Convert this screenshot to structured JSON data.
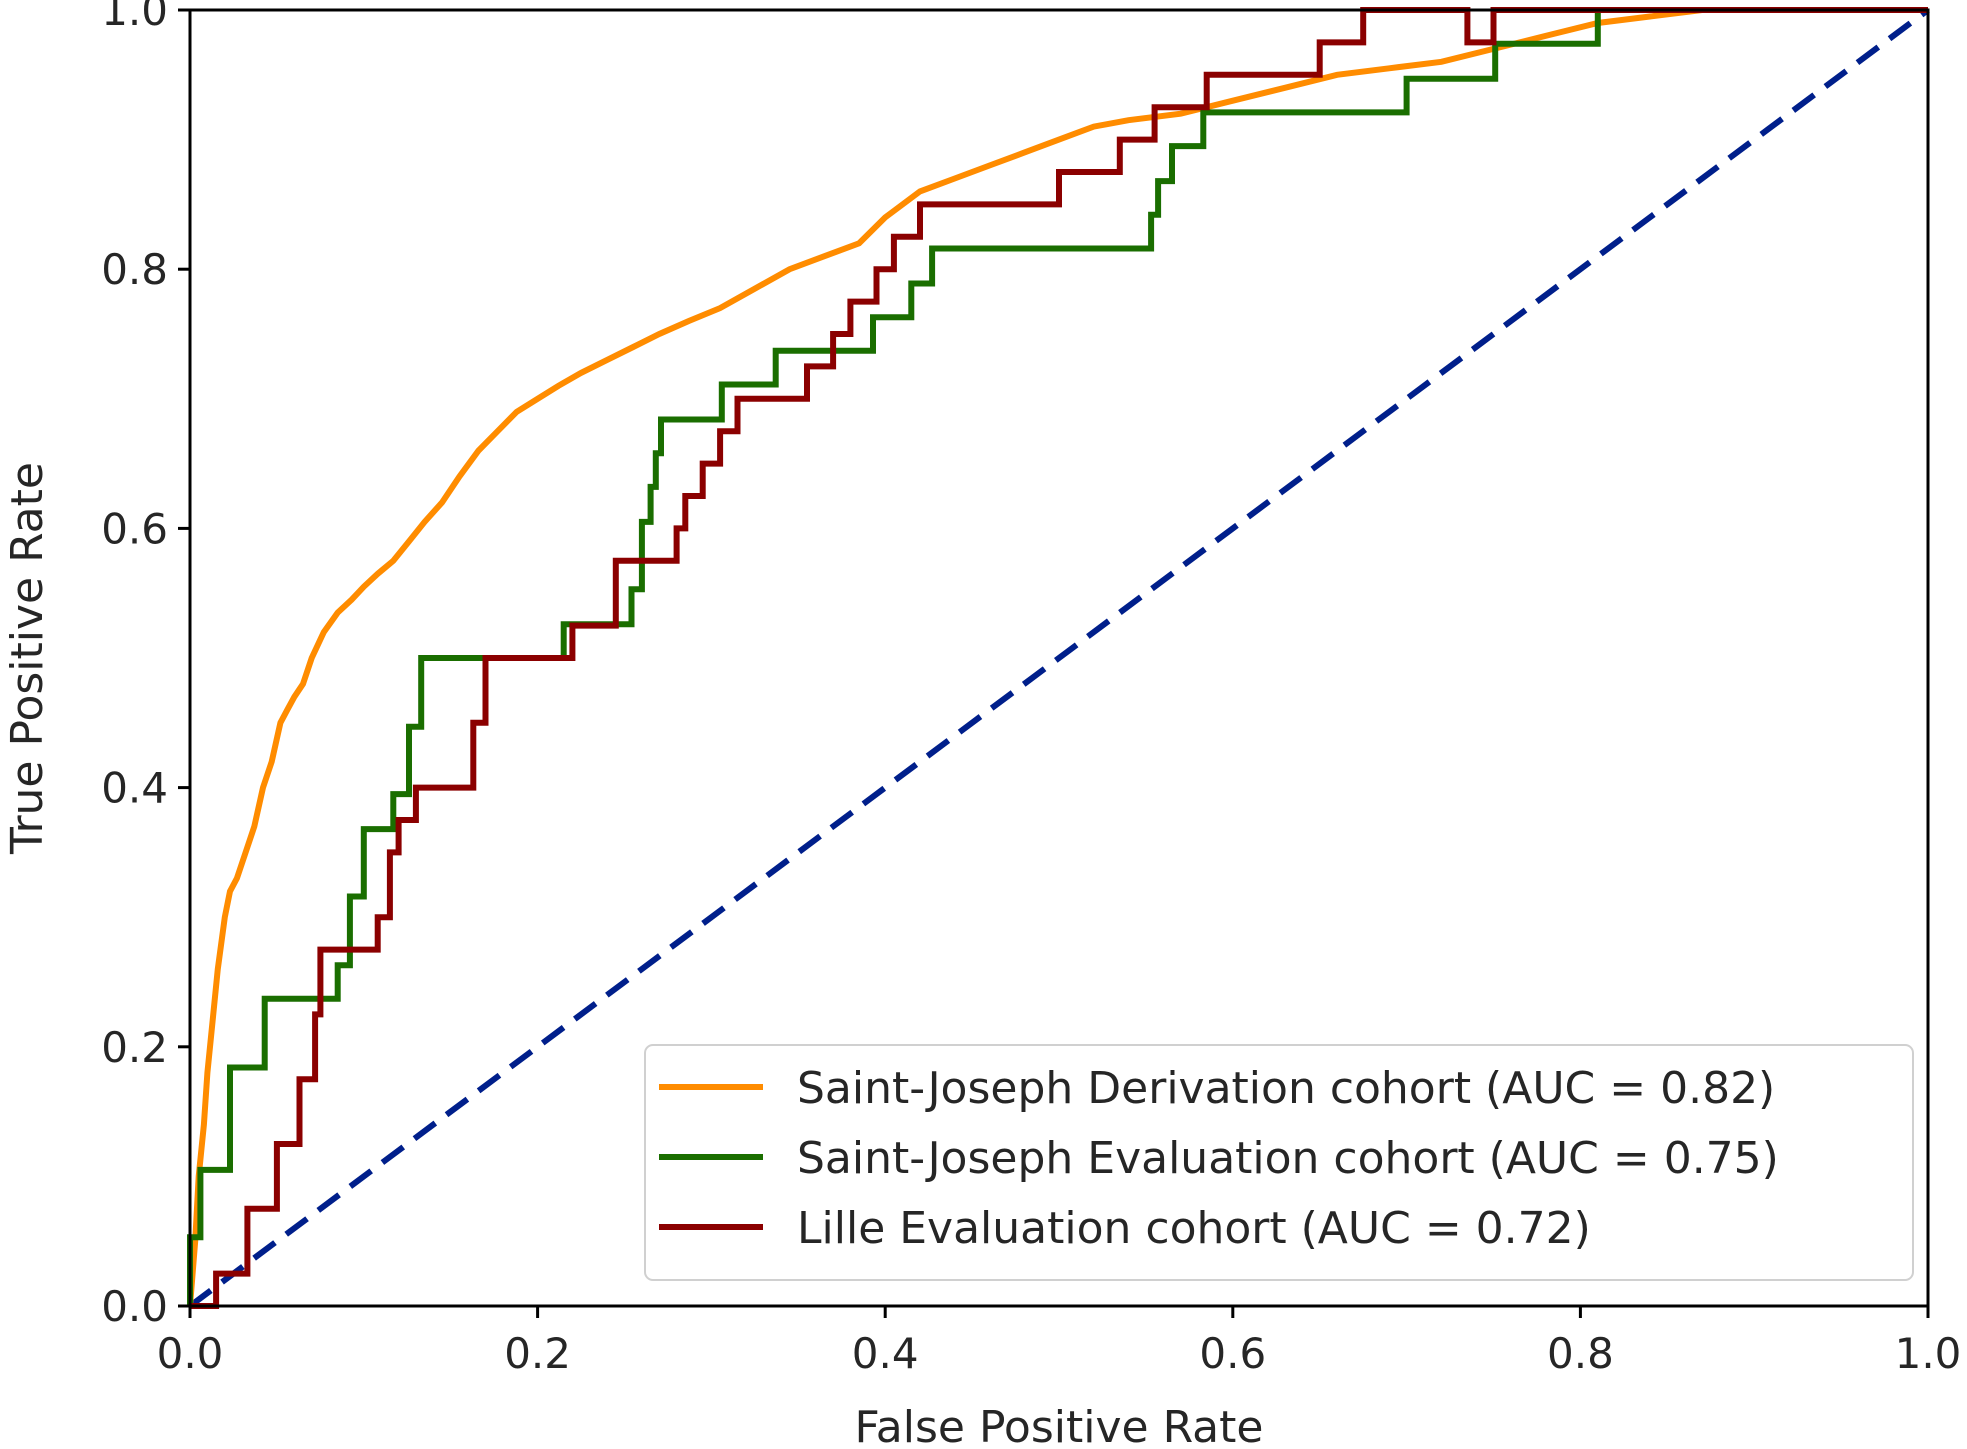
{
  "chart_data": {
    "type": "line",
    "title": "",
    "xlabel": "False Positive Rate",
    "ylabel": "True Positive Rate",
    "xlim": [
      0.0,
      1.0
    ],
    "ylim": [
      0.0,
      1.0
    ],
    "xticks": [
      "0.0",
      "0.2",
      "0.4",
      "0.6",
      "0.8",
      "1.0"
    ],
    "yticks": [
      "0.0",
      "0.2",
      "0.4",
      "0.6",
      "0.8",
      "1.0"
    ],
    "grid": false,
    "legend_position": "lower-right",
    "series": [
      {
        "name": "Saint-Joseph Derivation cohort (AUC = 0.82)",
        "color": "#ff8c00",
        "x": [
          0.0,
          0.003,
          0.005,
          0.008,
          0.01,
          0.013,
          0.016,
          0.02,
          0.023,
          0.027,
          0.032,
          0.037,
          0.042,
          0.047,
          0.052,
          0.056,
          0.06,
          0.065,
          0.07,
          0.077,
          0.085,
          0.093,
          0.1,
          0.108,
          0.117,
          0.126,
          0.135,
          0.145,
          0.155,
          0.166,
          0.177,
          0.188,
          0.2,
          0.212,
          0.225,
          0.24,
          0.255,
          0.27,
          0.287,
          0.305,
          0.325,
          0.345,
          0.365,
          0.385,
          0.4,
          0.42,
          0.44,
          0.46,
          0.48,
          0.5,
          0.52,
          0.54,
          0.57,
          0.6,
          0.63,
          0.66,
          0.69,
          0.72,
          0.75,
          0.78,
          0.81,
          0.84,
          0.87
        ],
        "y": [
          0.0,
          0.05,
          0.1,
          0.14,
          0.18,
          0.22,
          0.26,
          0.3,
          0.32,
          0.33,
          0.35,
          0.37,
          0.4,
          0.42,
          0.45,
          0.46,
          0.47,
          0.48,
          0.5,
          0.52,
          0.535,
          0.545,
          0.555,
          0.565,
          0.575,
          0.59,
          0.605,
          0.62,
          0.64,
          0.66,
          0.675,
          0.69,
          0.7,
          0.71,
          0.72,
          0.73,
          0.74,
          0.75,
          0.76,
          0.77,
          0.785,
          0.8,
          0.81,
          0.82,
          0.84,
          0.86,
          0.87,
          0.88,
          0.89,
          0.9,
          0.91,
          0.915,
          0.92,
          0.93,
          0.94,
          0.95,
          0.955,
          0.96,
          0.97,
          0.98,
          0.99,
          0.995,
          1.0
        ]
      },
      {
        "name": "Saint-Joseph Evaluation cohort (AUC = 0.75)",
        "color": "#1a6e00",
        "x": [
          0.0,
          0.0,
          0.006,
          0.006,
          0.023,
          0.023,
          0.043,
          0.043,
          0.085,
          0.085,
          0.092,
          0.092,
          0.1,
          0.1,
          0.117,
          0.117,
          0.126,
          0.126,
          0.133,
          0.133,
          0.14,
          0.14,
          0.215,
          0.215,
          0.23,
          0.23,
          0.254,
          0.254,
          0.26,
          0.26,
          0.265,
          0.265,
          0.268,
          0.268,
          0.271,
          0.271,
          0.274,
          0.274,
          0.306,
          0.306,
          0.337,
          0.337,
          0.393,
          0.393,
          0.415,
          0.415,
          0.427,
          0.427,
          0.553,
          0.553,
          0.557,
          0.557,
          0.565,
          0.565,
          0.576,
          0.576,
          0.583,
          0.583,
          0.587,
          0.587,
          0.7,
          0.7,
          0.751,
          0.751,
          0.81,
          0.81,
          0.89,
          0.89,
          1.0
        ],
        "y": [
          0.0,
          0.053,
          0.053,
          0.105,
          0.105,
          0.184,
          0.184,
          0.237,
          0.237,
          0.263,
          0.263,
          0.316,
          0.316,
          0.368,
          0.368,
          0.395,
          0.395,
          0.447,
          0.447,
          0.5,
          0.5,
          0.5,
          0.5,
          0.526,
          0.526,
          0.526,
          0.526,
          0.553,
          0.553,
          0.605,
          0.605,
          0.632,
          0.632,
          0.658,
          0.658,
          0.684,
          0.684,
          0.684,
          0.684,
          0.711,
          0.711,
          0.737,
          0.737,
          0.763,
          0.763,
          0.789,
          0.789,
          0.816,
          0.816,
          0.842,
          0.842,
          0.868,
          0.868,
          0.895,
          0.895,
          0.895,
          0.895,
          0.921,
          0.921,
          0.921,
          0.921,
          0.947,
          0.947,
          0.974,
          0.974,
          1.0,
          1.0,
          1.0,
          1.0
        ]
      },
      {
        "name": "Lille Evaluation cohort (AUC = 0.72)",
        "color": "#8b0000",
        "x": [
          0.0,
          0.015,
          0.015,
          0.033,
          0.033,
          0.05,
          0.05,
          0.063,
          0.063,
          0.072,
          0.072,
          0.075,
          0.075,
          0.108,
          0.108,
          0.115,
          0.115,
          0.12,
          0.12,
          0.13,
          0.13,
          0.163,
          0.163,
          0.17,
          0.17,
          0.22,
          0.22,
          0.245,
          0.245,
          0.28,
          0.28,
          0.285,
          0.285,
          0.295,
          0.295,
          0.305,
          0.305,
          0.315,
          0.315,
          0.355,
          0.355,
          0.37,
          0.37,
          0.38,
          0.38,
          0.395,
          0.395,
          0.405,
          0.405,
          0.42,
          0.42,
          0.5,
          0.5,
          0.535,
          0.535,
          0.555,
          0.555,
          0.585,
          0.585,
          0.65,
          0.65,
          0.675,
          0.675,
          0.71,
          0.71,
          0.735,
          0.735,
          0.75,
          0.75,
          0.81,
          0.81,
          0.9,
          0.9,
          1.0
        ],
        "y": [
          0.0,
          0.0,
          0.025,
          0.025,
          0.075,
          0.075,
          0.125,
          0.125,
          0.175,
          0.175,
          0.225,
          0.225,
          0.275,
          0.275,
          0.3,
          0.3,
          0.35,
          0.35,
          0.375,
          0.375,
          0.4,
          0.4,
          0.45,
          0.45,
          0.5,
          0.5,
          0.525,
          0.525,
          0.575,
          0.575,
          0.6,
          0.6,
          0.625,
          0.625,
          0.65,
          0.65,
          0.675,
          0.675,
          0.7,
          0.7,
          0.725,
          0.725,
          0.75,
          0.75,
          0.775,
          0.775,
          0.8,
          0.8,
          0.825,
          0.825,
          0.85,
          0.85,
          0.875,
          0.875,
          0.9,
          0.9,
          0.925,
          0.925,
          0.95,
          0.95,
          0.975,
          0.975,
          1.0,
          1.0,
          1.0,
          1.0,
          0.975,
          0.975,
          1.0,
          1.0,
          1.0,
          1.0,
          1.0,
          1.0
        ]
      }
    ],
    "reference_line": {
      "x": [
        0.0,
        1.0
      ],
      "y": [
        0.0,
        1.0
      ],
      "color": "#001f8b",
      "style": "dashed"
    }
  }
}
